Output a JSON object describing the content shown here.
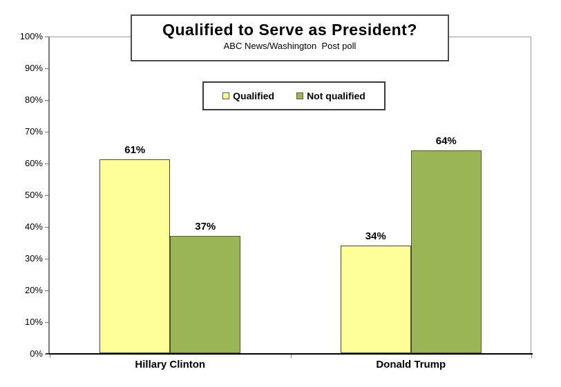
{
  "chart_data": {
    "type": "bar",
    "title": "Qualified to Serve as President?",
    "subtitle": "ABC News/Washington  Post poll",
    "categories": [
      "Hillary Clinton",
      "Donald Trump"
    ],
    "series": [
      {
        "name": "Qualified",
        "values": [
          61,
          34
        ],
        "labels": [
          "61%",
          "34%"
        ],
        "fill": "#ffff99",
        "border": "#45452e"
      },
      {
        "name": "Not qualified",
        "values": [
          37,
          64
        ],
        "labels": [
          "37%",
          "64%"
        ],
        "fill": "#9ab556",
        "border": "#4e5a2a"
      }
    ],
    "xlabel": "",
    "ylabel": "",
    "ylim": [
      0,
      100
    ],
    "y_tick_labels": [
      "100%",
      "90%",
      "80%",
      "70%",
      "60%",
      "50%",
      "40%",
      "30%",
      "20%",
      "10%",
      "0%"
    ],
    "grid": false,
    "legend_position": "top-center",
    "colors": {
      "qualified_fill": "#ffff99",
      "not_qualified_fill": "#9ab556",
      "axis": "#000000",
      "frame": "#9a9a9a"
    }
  }
}
